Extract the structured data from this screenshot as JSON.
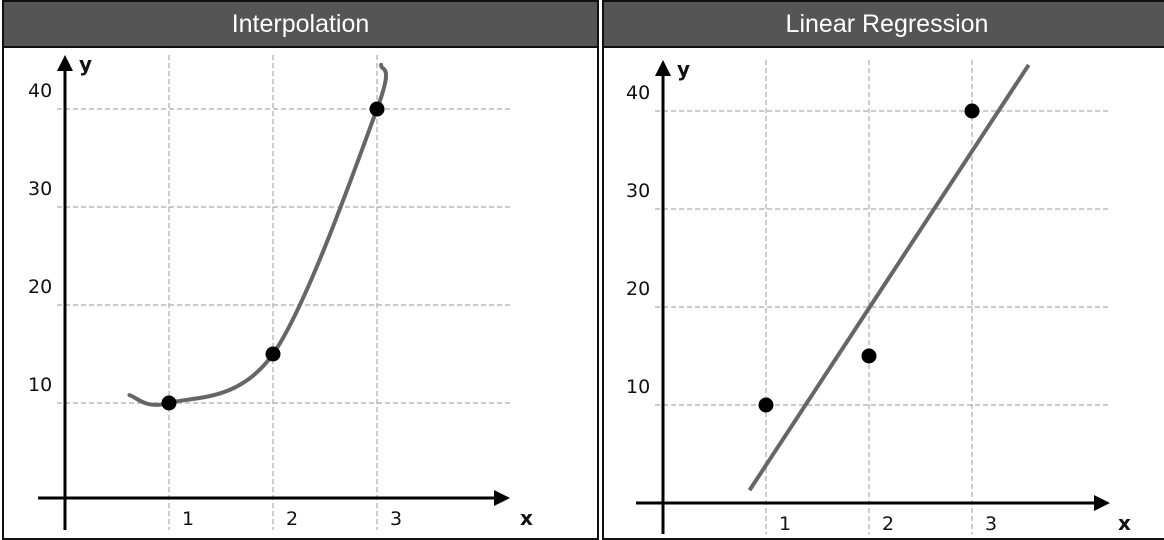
{
  "chart_data": [
    {
      "type": "line",
      "title": "Interpolation",
      "xlabel": "x",
      "ylabel": "y",
      "xticks": [
        "1",
        "2",
        "3"
      ],
      "yticks": [
        "10",
        "20",
        "30",
        "40"
      ],
      "points": [
        [
          1,
          10
        ],
        [
          2,
          15
        ],
        [
          3,
          40
        ]
      ],
      "curve": [
        [
          0.62,
          10.8
        ],
        [
          1,
          10
        ],
        [
          2,
          15
        ],
        [
          3,
          40
        ],
        [
          3.04,
          44.5
        ]
      ],
      "grid": true,
      "colors": {
        "curve": "#666666",
        "points": "#000000",
        "grid": "#aaaaaa"
      }
    },
    {
      "type": "scatter",
      "title": "Linear Regression",
      "xlabel": "x",
      "ylabel": "y",
      "xticks": [
        "1",
        "2",
        "3"
      ],
      "yticks": [
        "10",
        "20",
        "30",
        "40"
      ],
      "points": [
        [
          1,
          10
        ],
        [
          2,
          15
        ],
        [
          3,
          40
        ]
      ],
      "line": [
        [
          0.84,
          1.3
        ],
        [
          3.55,
          44.7
        ]
      ],
      "grid": true,
      "colors": {
        "curve": "#666666",
        "points": "#000000",
        "grid": "#aaaaaa"
      }
    }
  ]
}
